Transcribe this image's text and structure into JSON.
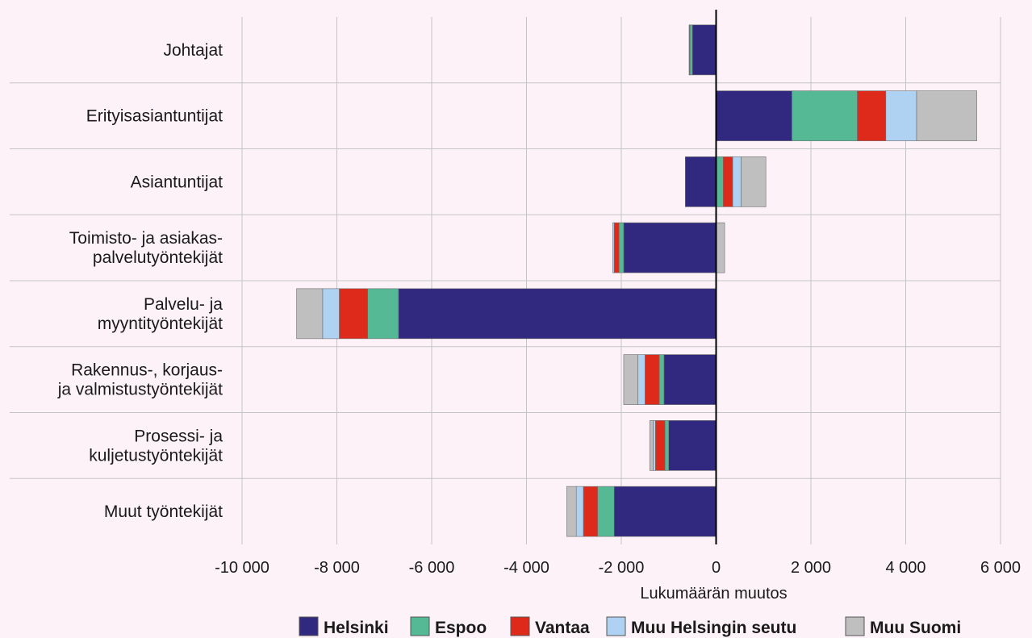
{
  "chart_data": {
    "type": "bar",
    "orientation": "horizontal",
    "stacked": true,
    "categories": [
      "Johtajat",
      "Erityisasiantuntijat",
      "Asiantuntijat",
      "Toimisto- ja asiakas-\npalvelutyöntekijät",
      "Palvelu- ja\nmyyntityöntekijät",
      "Rakennus-, korjaus-\nja valmistustyöntekijät",
      "Prosessi- ja\nkuljetustyöntekijät",
      "Muut työntekijät"
    ],
    "series": [
      {
        "name": "Helsinki",
        "color": "#31287f",
        "values": [
          -500,
          1600,
          -650,
          -1950,
          -6700,
          -1100,
          -1000,
          -2150
        ]
      },
      {
        "name": "Espoo",
        "color": "#55b996",
        "values": [
          -50,
          1380,
          150,
          -100,
          -650,
          -100,
          -80,
          -350
        ]
      },
      {
        "name": "Vantaa",
        "color": "#de2a1a",
        "values": [
          -10,
          600,
          200,
          -100,
          -600,
          -300,
          -200,
          -300
        ]
      },
      {
        "name": "Muu Helsingin seutu",
        "color": "#b0d2f2",
        "values": [
          -5,
          650,
          180,
          -30,
          -350,
          -150,
          -50,
          -150
        ]
      },
      {
        "name": "Muu Suomi",
        "color": "#bfbfbf",
        "values": [
          -5,
          1270,
          520,
          180,
          -550,
          -300,
          -70,
          -200
        ]
      }
    ],
    "xlabel": "Lukumäärän muutos",
    "xlim": [
      -10000,
      6000
    ],
    "xticks": [
      -10000,
      -8000,
      -6000,
      -4000,
      -2000,
      0,
      2000,
      4000,
      6000
    ],
    "xtick_labels": [
      "-10 000",
      "-8 000",
      "-6 000",
      "-4 000",
      "-2 000",
      "0",
      "2 000",
      "4 000",
      "6 000"
    ],
    "grid": true,
    "legend_position": "bottom"
  }
}
